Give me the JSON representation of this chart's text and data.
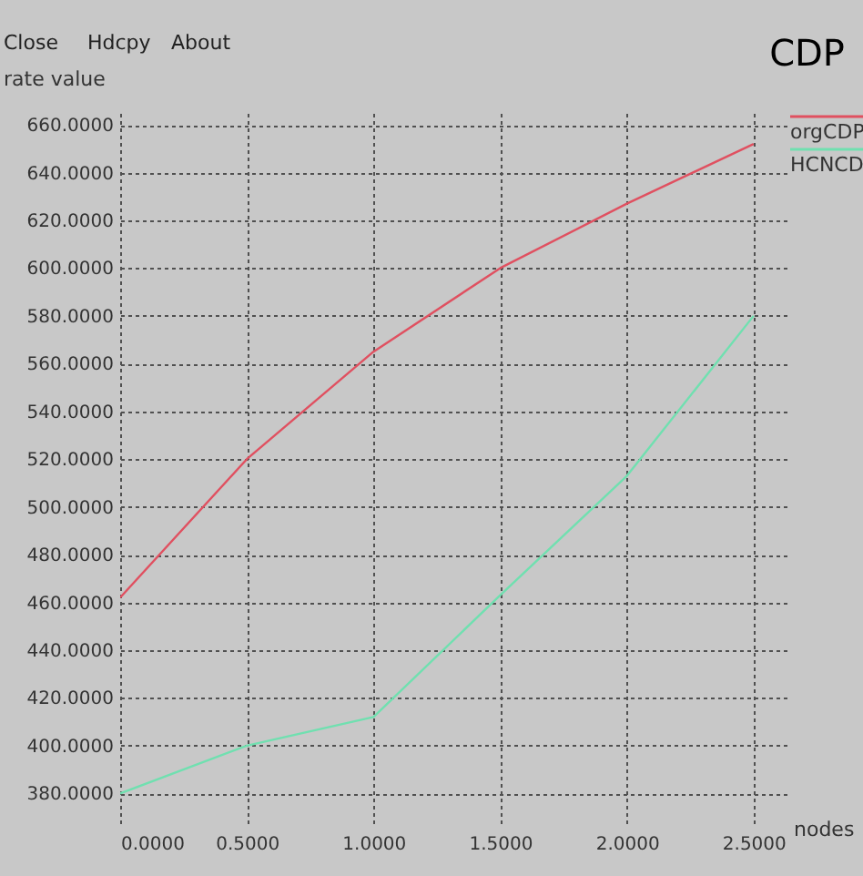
{
  "chart_data": {
    "type": "line",
    "title": "CDP",
    "xlabel": "nodes",
    "ylabel": "rate value",
    "annotations": [
      "Close",
      "Hdcpy",
      "About"
    ],
    "x": [
      0,
      0.5,
      1.0,
      1.5,
      2.0,
      2.5
    ],
    "series": [
      {
        "name": "orgCDP",
        "color": "#e05060",
        "values": [
          462,
          520,
          565,
          600,
          627,
          652
        ]
      },
      {
        "name": "HCNCD",
        "color": "#70e0b0",
        "values": [
          380,
          400,
          412,
          463,
          513,
          580
        ]
      }
    ],
    "xlim": [
      0,
      2.63
    ],
    "ylim": [
      366,
      665
    ],
    "xticks": [
      {
        "value": 0,
        "label": "0.0000"
      },
      {
        "value": 0.5,
        "label": "0.5000"
      },
      {
        "value": 1,
        "label": "1.0000"
      },
      {
        "value": 1.5,
        "label": "1.5000"
      },
      {
        "value": 2,
        "label": "2.0000"
      },
      {
        "value": 2.5,
        "label": "2.5000"
      }
    ],
    "yticks": [
      {
        "value": 380,
        "label": "380.0000"
      },
      {
        "value": 400,
        "label": "400.0000"
      },
      {
        "value": 420,
        "label": "420.0000"
      },
      {
        "value": 440,
        "label": "440.0000"
      },
      {
        "value": 460,
        "label": "460.0000"
      },
      {
        "value": 480,
        "label": "480.0000"
      },
      {
        "value": 500,
        "label": "500.0000"
      },
      {
        "value": 520,
        "label": "520.0000"
      },
      {
        "value": 540,
        "label": "540.0000"
      },
      {
        "value": 560,
        "label": "560.0000"
      },
      {
        "value": 580,
        "label": "580.0000"
      },
      {
        "value": 600,
        "label": "600.0000"
      },
      {
        "value": 620,
        "label": "620.0000"
      },
      {
        "value": 640,
        "label": "640.0000"
      },
      {
        "value": 660,
        "label": "660.0000"
      }
    ],
    "grid": true,
    "legend": "top right",
    "marker": "none",
    "line_style": "solid"
  }
}
